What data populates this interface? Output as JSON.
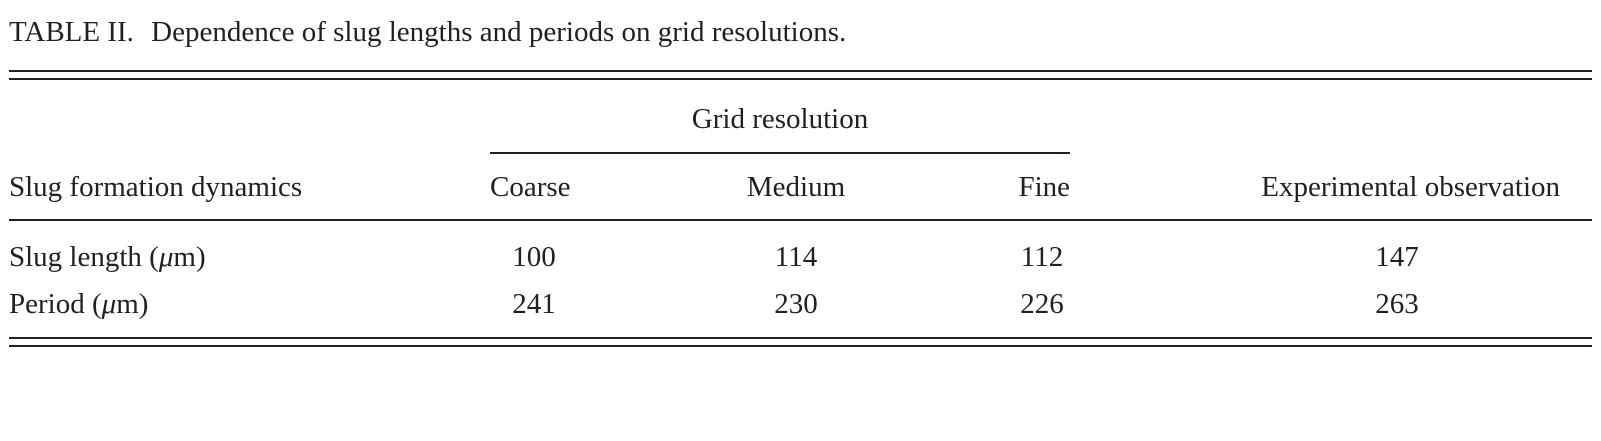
{
  "caption": {
    "label": "TABLE II.",
    "text": "Dependence of slug lengths and periods on grid resolutions."
  },
  "table": {
    "group_header": "Grid resolution",
    "headers": {
      "row_label": "Slug formation dynamics",
      "coarse": "Coarse",
      "medium": "Medium",
      "fine": "Fine",
      "experimental": "Experimental observation"
    },
    "rows": [
      {
        "label_prefix": "Slug length (",
        "label_mu": "μ",
        "label_suffix": "m)",
        "coarse": "100",
        "medium": "114",
        "fine": "112",
        "experimental": "147"
      },
      {
        "label_prefix": "Period (",
        "label_mu": "μ",
        "label_suffix": "m)",
        "coarse": "241",
        "medium": "230",
        "fine": "226",
        "experimental": "263"
      }
    ]
  }
}
